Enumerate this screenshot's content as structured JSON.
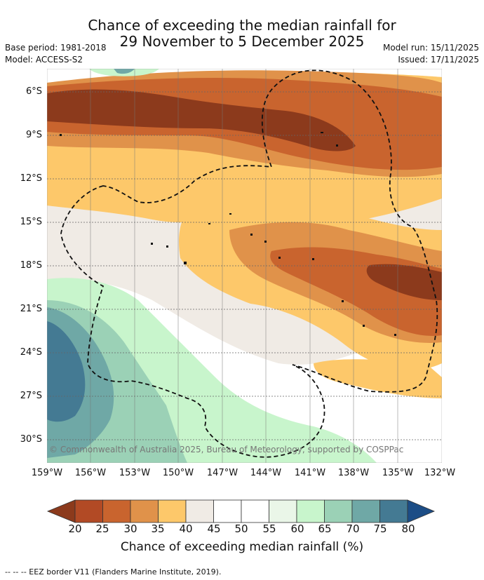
{
  "title": {
    "line1": "Chance of exceeding the median rainfall for",
    "line2": "29 November to 5 December 2025"
  },
  "meta": {
    "base_period": "Base period: 1981-2018",
    "model": "Model: ACCESS-S2",
    "model_run": "Model run: 15/11/2025",
    "issued": "Issued: 17/11/2025"
  },
  "map": {
    "lat_labels": [
      "6°S",
      "9°S",
      "12°S",
      "15°S",
      "18°S",
      "21°S",
      "24°S",
      "27°S",
      "30°S"
    ],
    "lon_labels": [
      "159°W",
      "156°W",
      "153°W",
      "150°W",
      "147°W",
      "144°W",
      "141°W",
      "138°W",
      "135°W",
      "132°W"
    ],
    "copyright": "© Commonwealth of Australia 2025, Bureau of Meteorology, supported by COSPPac"
  },
  "colorbar": {
    "title": "Chance of exceeding median rainfall (%)",
    "ticks": [
      "20",
      "25",
      "30",
      "35",
      "40",
      "45",
      "50",
      "55",
      "60",
      "65",
      "70",
      "75",
      "80"
    ],
    "colors": [
      "#8c3a1c",
      "#b24a25",
      "#c9642e",
      "#e0924a",
      "#fdc86a",
      "#f0ebe5",
      "#ffffff",
      "#ffffff",
      "#eaf6e8",
      "#c8f5cc",
      "#9bd1b6",
      "#6fa8a6",
      "#447a93",
      "#1c4d86"
    ]
  },
  "legend": {
    "eez": "--  --  -- EEZ border V11 (Flanders Marine Institute, 2019)."
  },
  "colors": {
    "very_dry": "#8c3a1c",
    "dry": "#c9642e",
    "moderate_dry": "#e0924a",
    "slight_dry": "#fdc86a",
    "neutral": "#f0ebe5",
    "slight_wet": "#c8f5cc",
    "wet": "#6fa8a6",
    "very_wet": "#447a93"
  }
}
